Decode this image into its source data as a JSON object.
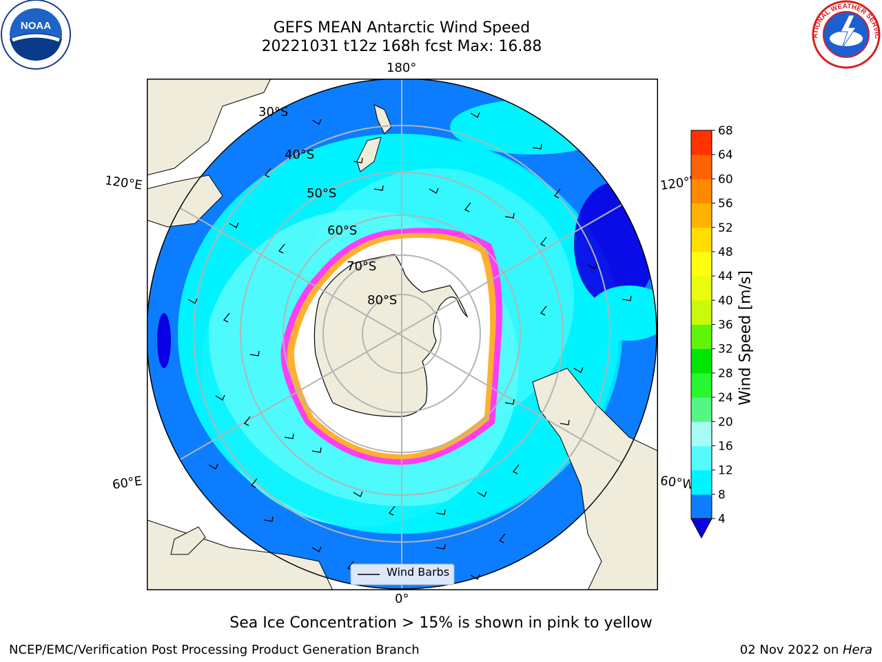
{
  "title": {
    "line1": "GEFS MEAN Antarctic Wind Speed",
    "line2": "20221031 t12z 168h fcst   Max: 16.88"
  },
  "logos": {
    "left": {
      "icon": "noaa-logo",
      "text": "NOAA"
    },
    "right": {
      "icon": "nws-logo",
      "text": "NATIONAL WEATHER SERVICE"
    }
  },
  "map": {
    "projection": "south-polar-stereographic",
    "longitude_labels": {
      "top": "180°",
      "bottom": "0°",
      "upper_left": "120°E",
      "upper_right": "120°W",
      "lower_left": "60°E",
      "lower_right": "60°W"
    },
    "latitude_labels": [
      "30°S",
      "40°S",
      "50°S",
      "60°S",
      "70°S",
      "80°S"
    ],
    "legend_label": "Wind Barbs",
    "colors": {
      "land": "#efecdc",
      "ocean_4_8": "#0d7dff",
      "ocean_8_12": "#00f3ff",
      "ocean_12_16": "#56fbfb",
      "ocean_below_4": "#0a00e6",
      "sea_ice_edge": "#ff3df5",
      "sea_ice_inner": "#ffb030",
      "ice_interior": "#ffffff",
      "graticule": "#b4b4b4"
    }
  },
  "colorbar": {
    "label": "Wind Speed [m/s]",
    "ticks": [
      "4",
      "8",
      "12",
      "16",
      "20",
      "24",
      "28",
      "32",
      "36",
      "40",
      "44",
      "48",
      "52",
      "56",
      "60",
      "64",
      "68"
    ],
    "colors": [
      "#0d7dff",
      "#00f3ff",
      "#56fbfb",
      "#a7fdf6",
      "#55f784",
      "#27f72f",
      "#00e600",
      "#5ef50a",
      "#c9f90d",
      "#eafc0d",
      "#fefe0d",
      "#ffdf00",
      "#ffb300",
      "#ff8a00",
      "#ff6200",
      "#ff3200",
      "#ff0000"
    ],
    "under_color": "#0a00e6"
  },
  "caption": "Sea Ice Concentration > 15% is shown in pink to yellow",
  "footer": {
    "left": "NCEP/EMC/Verification Post Processing Product Generation Branch",
    "date": "02 Nov 2022 on ",
    "machine": "Hera"
  }
}
